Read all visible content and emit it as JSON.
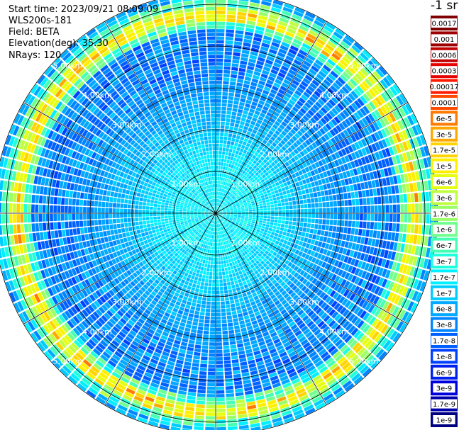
{
  "info": {
    "start_time": "Start time: 2023/09/21 08:09:09",
    "scan_id": "WLS200s-181",
    "field": "Field: BETA",
    "elevation": "Elevation(deg): 35.30",
    "nrays": "NRays: 120"
  },
  "colorbar": {
    "title": "-1 sr",
    "entries": [
      {
        "label": "0.0017",
        "color": "#7f0000"
      },
      {
        "label": "0.001",
        "color": "#9e0000"
      },
      {
        "label": "0.0006",
        "color": "#c00000"
      },
      {
        "label": "0.0003",
        "color": "#e60000"
      },
      {
        "label": "0.00017",
        "color": "#ff1a00"
      },
      {
        "label": "0.0001",
        "color": "#ff4a00"
      },
      {
        "label": "6e-5",
        "color": "#ff7a00"
      },
      {
        "label": "3e-5",
        "color": "#ffa800"
      },
      {
        "label": "1.7e-5",
        "color": "#ffd400"
      },
      {
        "label": "1e-5",
        "color": "#fff000"
      },
      {
        "label": "6e-6",
        "color": "#e6ff10"
      },
      {
        "label": "3e-6",
        "color": "#c0ff40"
      },
      {
        "label": "1.7e-6",
        "color": "#9aff66"
      },
      {
        "label": "1e-6",
        "color": "#70ff8e"
      },
      {
        "label": "6e-7",
        "color": "#45ffb5"
      },
      {
        "label": "3e-7",
        "color": "#20ffdc"
      },
      {
        "label": "1.7e-7",
        "color": "#00f0ff"
      },
      {
        "label": "1e-7",
        "color": "#00ccff"
      },
      {
        "label": "6e-8",
        "color": "#00a8ff"
      },
      {
        "label": "3e-8",
        "color": "#0084ff"
      },
      {
        "label": "1.7e-8",
        "color": "#0060ff"
      },
      {
        "label": "1e-8",
        "color": "#0040ff"
      },
      {
        "label": "6e-9",
        "color": "#0020ee"
      },
      {
        "label": "3e-9",
        "color": "#0000dd"
      },
      {
        "label": "1.7e-9",
        "color": "#0000aa"
      },
      {
        "label": "1e-9",
        "color": "#000080"
      }
    ]
  },
  "chart_data": {
    "type": "heatmap",
    "projection": "polar (PPI scan)",
    "field": "BETA",
    "elevation_deg": 35.3,
    "nrays": 120,
    "range_rings_km": [
      1,
      2,
      3,
      4,
      5
    ],
    "max_range_km": 5.3,
    "ring_label_format": "{r}.00km",
    "ring_label_bearings_deg": [
      45,
      135,
      225,
      315
    ],
    "spoke_step_deg": 30,
    "profile": [
      {
        "range_km": 0.0,
        "level_index": 16
      },
      {
        "range_km": 1.0,
        "level_index": 16
      },
      {
        "range_km": 1.8,
        "level_index": 17
      },
      {
        "range_km": 2.5,
        "level_index": 18
      },
      {
        "range_km": 3.5,
        "level_index": 19
      },
      {
        "range_km": 4.5,
        "level_index": 19
      },
      {
        "range_km": 4.8,
        "level_index": 10
      },
      {
        "range_km": 5.0,
        "level_index": 17
      },
      {
        "range_km": 5.3,
        "level_index": 18
      }
    ]
  }
}
